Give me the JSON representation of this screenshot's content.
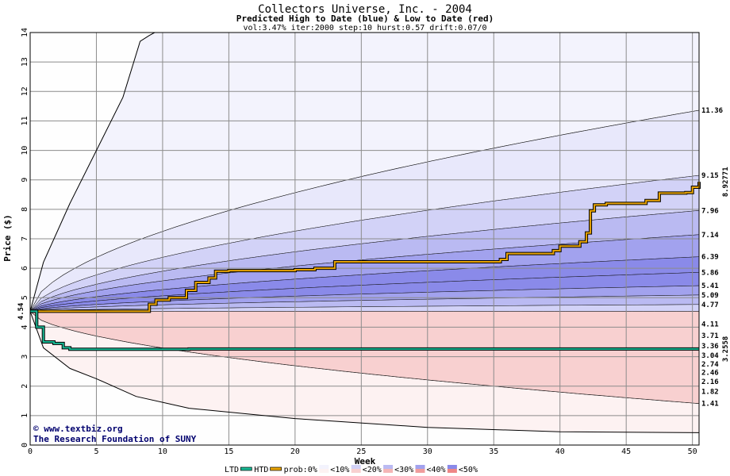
{
  "chart_data": {
    "type": "area",
    "title": "Collectors Universe, Inc. - 2004",
    "subtitle": "Predicted High to Date (blue) &  Low to Date (red)",
    "params": "vol:3.47% iter:2000 step:10 hurst:0.57 drift:0.07/0",
    "xlabel": "Week",
    "ylabel": "Price ($)",
    "xlim": [
      0,
      50.5
    ],
    "ylim": [
      0,
      14
    ],
    "x_ticks": [
      0,
      5,
      10,
      15,
      20,
      25,
      30,
      35,
      40,
      45,
      50
    ],
    "y_ticks": [
      0,
      1,
      2,
      3,
      4,
      5,
      6,
      7,
      8,
      9,
      10,
      11,
      12,
      13,
      14
    ],
    "grid": true,
    "start_price": 4.54,
    "start_label": "4.54",
    "upper_bands": [
      {
        "end_label": "11.36",
        "end_value": 11.36,
        "fill": "#e8e8fb"
      },
      {
        "end_label": "9.15",
        "end_value": 9.15,
        "fill": "#d2d2f7"
      },
      {
        "end_label": "7.96",
        "end_value": 7.96,
        "fill": "#babaf2"
      },
      {
        "end_label": "7.14",
        "end_value": 7.14,
        "fill": "#a2a2ee"
      },
      {
        "end_label": "6.39",
        "end_value": 6.39,
        "fill": "#8a8ae9"
      },
      {
        "end_label": "5.86",
        "end_value": 5.86,
        "fill": "#8a8ae9"
      },
      {
        "end_label": "5.41",
        "end_value": 5.41,
        "fill": "#a2a2ee"
      },
      {
        "end_label": "5.09",
        "end_value": 5.09,
        "fill": "#babaf2"
      },
      {
        "end_label": "4.77",
        "end_value": 4.77,
        "fill": "#d2d2f7"
      }
    ],
    "lower_bands": [
      {
        "end_label": "4.11",
        "end_value": 4.11,
        "fill": "#fce8e8"
      },
      {
        "end_label": "3.71",
        "end_value": 3.71,
        "fill": "#f8d0d0"
      },
      {
        "end_label": "3.36",
        "end_value": 3.36,
        "fill": "#f4b6b6"
      },
      {
        "end_label": "3.04",
        "end_value": 3.04,
        "fill": "#f09c9c"
      },
      {
        "end_label": "2.74",
        "end_value": 2.74,
        "fill": "#ee8686"
      },
      {
        "end_label": "2.46",
        "end_value": 2.46,
        "fill": "#ee8686"
      },
      {
        "end_label": "2.16",
        "end_value": 2.16,
        "fill": "#f09c9c"
      },
      {
        "end_label": "1.82",
        "end_value": 1.82,
        "fill": "#f4b6b6"
      },
      {
        "end_label": "1.41",
        "end_value": 1.41,
        "fill": "#f8d0d0"
      }
    ],
    "outer_envelope": {
      "upper": {
        "x": [
          0,
          1,
          3,
          5,
          7,
          8.3,
          9,
          9.4
        ],
        "y": [
          4.54,
          6.2,
          8.2,
          10.0,
          11.8,
          13.7,
          13.9,
          14.0
        ]
      },
      "lower": {
        "x": [
          0,
          1,
          3,
          5,
          8,
          12,
          20,
          30,
          40,
          50.5
        ],
        "y": [
          4.54,
          3.3,
          2.6,
          2.25,
          1.65,
          1.25,
          0.9,
          0.6,
          0.45,
          0.42
        ]
      }
    },
    "series": [
      {
        "name": "HTD",
        "color": "#e8a400",
        "step": true,
        "end_label": "8.92771",
        "x": [
          0,
          8.7,
          9.0,
          9.5,
          10.5,
          11.8,
          12.5,
          13.5,
          14.0,
          15.0,
          20.0,
          21.5,
          23.0,
          27.5,
          35.5,
          36.0,
          37.0,
          39.5,
          40.0,
          41.5,
          42.0,
          42.3,
          42.6,
          43.5,
          46.5,
          47.5,
          49.5,
          50.0,
          50.5
        ],
        "y": [
          4.54,
          4.54,
          4.78,
          4.92,
          5.0,
          5.25,
          5.52,
          5.67,
          5.9,
          5.92,
          5.95,
          6.0,
          6.22,
          6.22,
          6.3,
          6.5,
          6.5,
          6.6,
          6.75,
          6.9,
          7.2,
          7.95,
          8.15,
          8.2,
          8.3,
          8.55,
          8.57,
          8.75,
          8.93
        ]
      },
      {
        "name": "LTD",
        "color": "#18b894",
        "step": true,
        "end_label": "3.2558",
        "x": [
          0,
          0.5,
          1.0,
          1.8,
          2.5,
          3.0,
          6.0,
          12.0,
          50.5
        ],
        "y": [
          4.54,
          4.0,
          3.5,
          3.45,
          3.3,
          3.25,
          3.25,
          3.26,
          3.26
        ]
      }
    ],
    "credits": [
      "© www.textbiz.org",
      "The Research Foundation of SUNY"
    ],
    "legend": {
      "ltd_label": "LTD",
      "htd_label": "HTD",
      "prob_label": "prob:0%",
      "bins": [
        "<10%",
        "<20%",
        "<30%",
        "<40%",
        "<50%"
      ],
      "ltd_color": "#18b894",
      "htd_color": "#e8a400"
    }
  }
}
